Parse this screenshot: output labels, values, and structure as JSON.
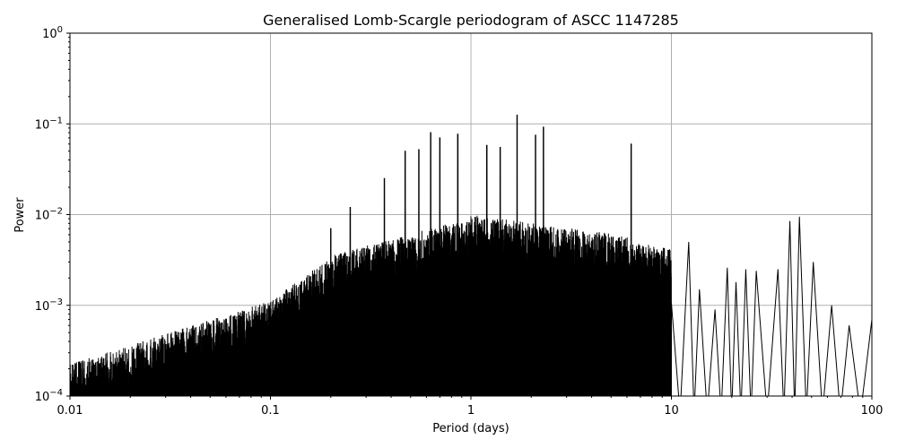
{
  "chart_data": {
    "type": "line",
    "title": "Generalised Lomb-Scargle periodogram of ASCC 1147285",
    "xlabel": "Period (days)",
    "ylabel": "Power",
    "xscale": "log",
    "yscale": "log",
    "xlim": [
      0.01,
      100
    ],
    "ylim": [
      0.0001,
      1
    ],
    "grid": true,
    "line_color": "#000000",
    "x_ticks": [
      {
        "value": 0.01,
        "label": "0.01"
      },
      {
        "value": 0.1,
        "label": "0.1"
      },
      {
        "value": 1,
        "label": "1"
      },
      {
        "value": 10,
        "label": "10"
      },
      {
        "value": 100,
        "label": "100"
      }
    ],
    "y_ticks": [
      {
        "value": 0.0001,
        "base": "10",
        "exp": "−4"
      },
      {
        "value": 0.001,
        "base": "10",
        "exp": "−3"
      },
      {
        "value": 0.01,
        "base": "10",
        "exp": "−2"
      },
      {
        "value": 0.1,
        "base": "10",
        "exp": "−1"
      },
      {
        "value": 1,
        "base": "10",
        "exp": "0"
      }
    ],
    "notable_peaks": [
      {
        "period": 0.2,
        "power": 0.007
      },
      {
        "period": 0.25,
        "power": 0.012
      },
      {
        "period": 0.37,
        "power": 0.025
      },
      {
        "period": 0.47,
        "power": 0.05
      },
      {
        "period": 0.55,
        "power": 0.052
      },
      {
        "period": 0.63,
        "power": 0.08
      },
      {
        "period": 0.7,
        "power": 0.07
      },
      {
        "period": 0.86,
        "power": 0.077
      },
      {
        "period": 1.2,
        "power": 0.058
      },
      {
        "period": 1.4,
        "power": 0.055
      },
      {
        "period": 1.7,
        "power": 0.125
      },
      {
        "period": 2.1,
        "power": 0.075
      },
      {
        "period": 2.3,
        "power": 0.092
      },
      {
        "period": 6.3,
        "power": 0.06
      },
      {
        "period": 12.2,
        "power": 0.005
      },
      {
        "period": 13.8,
        "power": 0.0015
      },
      {
        "period": 16.5,
        "power": 0.0009
      },
      {
        "period": 19.0,
        "power": 0.0026
      },
      {
        "period": 21.0,
        "power": 0.0018
      },
      {
        "period": 23.5,
        "power": 0.0025
      },
      {
        "period": 26.5,
        "power": 0.0024
      },
      {
        "period": 34.0,
        "power": 0.0025
      },
      {
        "period": 39.0,
        "power": 0.0085
      },
      {
        "period": 43.5,
        "power": 0.0095
      },
      {
        "period": 51.0,
        "power": 0.003
      },
      {
        "period": 63.0,
        "power": 0.001
      },
      {
        "period": 77.0,
        "power": 0.0006
      },
      {
        "period": 100.0,
        "power": 0.0007
      }
    ]
  }
}
